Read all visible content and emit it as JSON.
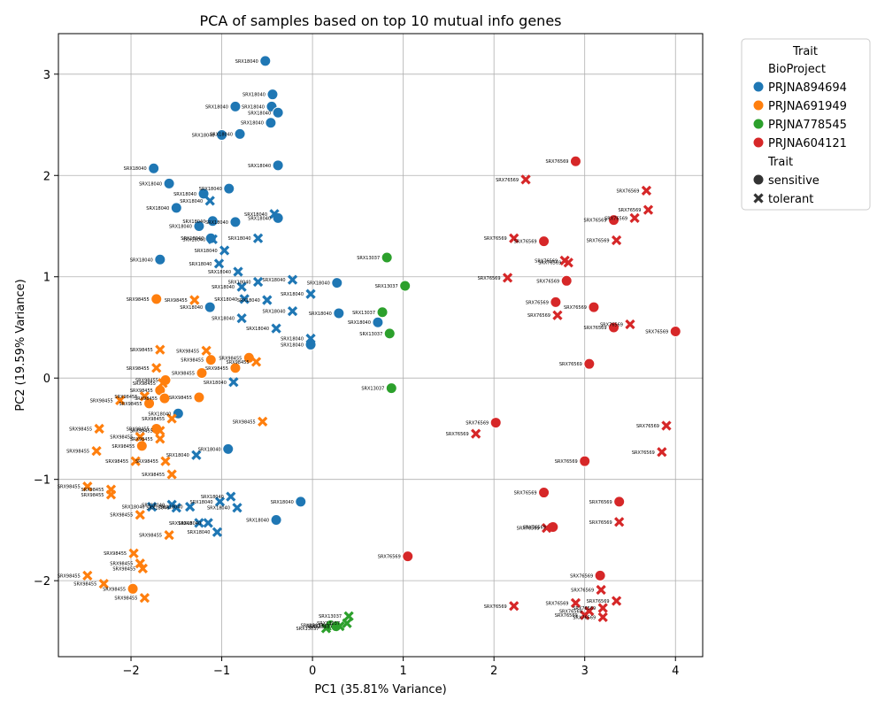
{
  "chart_data": {
    "type": "scatter",
    "title": "PCA of samples based on top 10 mutual info genes",
    "xlabel": "PC1 (35.81% Variance)",
    "ylabel": "PC2 (19.59% Variance)",
    "xlim": [
      -2.8,
      4.3
    ],
    "ylim": [
      -2.75,
      3.4
    ],
    "xticks": [
      -2,
      -1,
      0,
      1,
      2,
      3,
      4
    ],
    "yticks": [
      -2,
      -1,
      0,
      1,
      2,
      3
    ],
    "xtick_labels": [
      "−2",
      "−1",
      "0",
      "1",
      "2",
      "3",
      "4"
    ],
    "ytick_labels": [
      "−2",
      "−1",
      "0",
      "1",
      "2",
      "3"
    ],
    "grid": true,
    "legend": {
      "placement": "outside-top-right",
      "heading": "Trait",
      "hue_title": "BioProject",
      "style_title": "Trait",
      "styles": [
        {
          "name": "sensitive",
          "marker": "circle"
        },
        {
          "name": "tolerant",
          "marker": "x"
        }
      ]
    },
    "series": [
      {
        "name": "PRJNA894694",
        "color": "#1f77b4",
        "label": "SRX18040",
        "sensitive": [
          [
            -0.52,
            3.13
          ],
          [
            -0.44,
            2.8
          ],
          [
            -0.85,
            2.68
          ],
          [
            -0.45,
            2.68
          ],
          [
            -0.38,
            2.62
          ],
          [
            -0.46,
            2.52
          ],
          [
            -1.0,
            2.4
          ],
          [
            -0.8,
            2.41
          ],
          [
            -1.75,
            2.07
          ],
          [
            -0.38,
            2.1
          ],
          [
            -1.58,
            1.92
          ],
          [
            -0.92,
            1.87
          ],
          [
            -1.2,
            1.82
          ],
          [
            -1.5,
            1.68
          ],
          [
            -0.38,
            1.58
          ],
          [
            -1.1,
            1.55
          ],
          [
            -0.85,
            1.54
          ],
          [
            -1.25,
            1.5
          ],
          [
            -1.12,
            1.38
          ],
          [
            -1.68,
            1.17
          ],
          [
            -1.13,
            0.7
          ],
          [
            0.27,
            0.94
          ],
          [
            0.29,
            0.64
          ],
          [
            0.72,
            0.55
          ],
          [
            -0.02,
            0.33
          ],
          [
            -1.48,
            -0.35
          ],
          [
            -0.93,
            -0.7
          ],
          [
            -0.13,
            -1.22
          ],
          [
            -0.4,
            -1.4
          ]
        ],
        "tolerant": [
          [
            -0.42,
            1.62
          ],
          [
            -1.13,
            1.75
          ],
          [
            -0.6,
            1.38
          ],
          [
            -1.1,
            1.37
          ],
          [
            -0.97,
            1.26
          ],
          [
            -1.03,
            1.13
          ],
          [
            -0.82,
            1.05
          ],
          [
            -0.6,
            0.95
          ],
          [
            -0.22,
            0.97
          ],
          [
            -0.78,
            0.9
          ],
          [
            -0.02,
            0.83
          ],
          [
            -0.75,
            0.78
          ],
          [
            -0.5,
            0.77
          ],
          [
            -0.22,
            0.66
          ],
          [
            -0.78,
            0.59
          ],
          [
            -0.4,
            0.49
          ],
          [
            -0.02,
            0.39
          ],
          [
            -0.87,
            -0.04
          ],
          [
            -1.28,
            -0.76
          ],
          [
            -1.77,
            -1.27
          ],
          [
            -1.55,
            -1.25
          ],
          [
            -1.35,
            -1.27
          ],
          [
            -1.02,
            -1.22
          ],
          [
            -0.9,
            -1.17
          ],
          [
            -0.83,
            -1.28
          ],
          [
            -1.15,
            -1.43
          ],
          [
            -1.25,
            -1.43
          ],
          [
            -1.05,
            -1.52
          ],
          [
            -1.5,
            -1.28
          ]
        ]
      },
      {
        "name": "PRJNA691949",
        "color": "#ff7f0e",
        "label": "SRX98455",
        "sensitive": [
          [
            -1.72,
            0.78
          ],
          [
            -0.7,
            0.2
          ],
          [
            -1.12,
            0.18
          ],
          [
            -1.22,
            0.05
          ],
          [
            -0.85,
            0.1
          ],
          [
            -1.62,
            -0.02
          ],
          [
            -1.68,
            -0.12
          ],
          [
            -1.63,
            -0.2
          ],
          [
            -1.25,
            -0.19
          ],
          [
            -1.8,
            -0.25
          ],
          [
            -1.72,
            -0.5
          ],
          [
            -1.88,
            -0.67
          ],
          [
            -1.98,
            -2.08
          ]
        ],
        "tolerant": [
          [
            -1.3,
            0.77
          ],
          [
            -1.17,
            0.27
          ],
          [
            -1.68,
            0.28
          ],
          [
            -1.72,
            0.1
          ],
          [
            -0.62,
            0.16
          ],
          [
            -1.65,
            -0.05
          ],
          [
            -2.12,
            -0.22
          ],
          [
            -1.85,
            -0.18
          ],
          [
            -1.55,
            -0.4
          ],
          [
            -0.55,
            -0.43
          ],
          [
            -2.35,
            -0.5
          ],
          [
            -1.68,
            -0.52
          ],
          [
            -1.68,
            -0.6
          ],
          [
            -1.9,
            -0.58
          ],
          [
            -2.38,
            -0.72
          ],
          [
            -1.62,
            -0.82
          ],
          [
            -1.95,
            -0.82
          ],
          [
            -1.55,
            -0.95
          ],
          [
            -2.48,
            -1.07
          ],
          [
            -2.22,
            -1.1
          ],
          [
            -2.22,
            -1.15
          ],
          [
            -1.9,
            -1.35
          ],
          [
            -1.58,
            -1.55
          ],
          [
            -1.97,
            -1.73
          ],
          [
            -1.9,
            -1.83
          ],
          [
            -1.87,
            -1.88
          ],
          [
            -2.48,
            -1.95
          ],
          [
            -2.3,
            -2.03
          ],
          [
            -1.85,
            -2.17
          ]
        ]
      },
      {
        "name": "PRJNA778545",
        "color": "#2ca02c",
        "label": "SRX13037",
        "sensitive": [
          [
            0.82,
            1.19
          ],
          [
            1.02,
            0.91
          ],
          [
            0.77,
            0.65
          ],
          [
            0.85,
            0.44
          ],
          [
            0.87,
            -0.1
          ],
          [
            0.2,
            -2.44
          ],
          [
            0.26,
            -2.45
          ]
        ],
        "tolerant": [
          [
            0.4,
            -2.35
          ],
          [
            0.38,
            -2.42
          ],
          [
            0.3,
            -2.45
          ],
          [
            0.15,
            -2.47
          ]
        ]
      },
      {
        "name": "PRJNA604121",
        "color": "#d62728",
        "label": "SRX76569",
        "sensitive": [
          [
            2.9,
            2.14
          ],
          [
            3.32,
            1.56
          ],
          [
            2.55,
            1.35
          ],
          [
            2.8,
            0.96
          ],
          [
            2.68,
            0.75
          ],
          [
            3.1,
            0.7
          ],
          [
            3.32,
            0.5
          ],
          [
            4.0,
            0.46
          ],
          [
            3.05,
            0.14
          ],
          [
            2.02,
            -0.44
          ],
          [
            3.0,
            -0.82
          ],
          [
            2.55,
            -1.13
          ],
          [
            3.38,
            -1.22
          ],
          [
            2.65,
            -1.47
          ],
          [
            1.05,
            -1.76
          ],
          [
            3.17,
            -1.95
          ]
        ],
        "tolerant": [
          [
            2.35,
            1.96
          ],
          [
            3.68,
            1.85
          ],
          [
            3.7,
            1.66
          ],
          [
            3.55,
            1.58
          ],
          [
            2.22,
            1.38
          ],
          [
            3.35,
            1.36
          ],
          [
            2.78,
            1.16
          ],
          [
            2.82,
            1.14
          ],
          [
            2.15,
            0.99
          ],
          [
            2.7,
            0.62
          ],
          [
            3.5,
            0.53
          ],
          [
            3.9,
            -0.47
          ],
          [
            1.8,
            -0.55
          ],
          [
            3.85,
            -0.73
          ],
          [
            3.38,
            -1.42
          ],
          [
            2.58,
            -1.48
          ],
          [
            3.18,
            -2.09
          ],
          [
            3.35,
            -2.2
          ],
          [
            2.9,
            -2.22
          ],
          [
            2.22,
            -2.25
          ],
          [
            3.2,
            -2.27
          ],
          [
            3.05,
            -2.3
          ],
          [
            3.0,
            -2.34
          ],
          [
            3.2,
            -2.36
          ]
        ]
      }
    ]
  }
}
